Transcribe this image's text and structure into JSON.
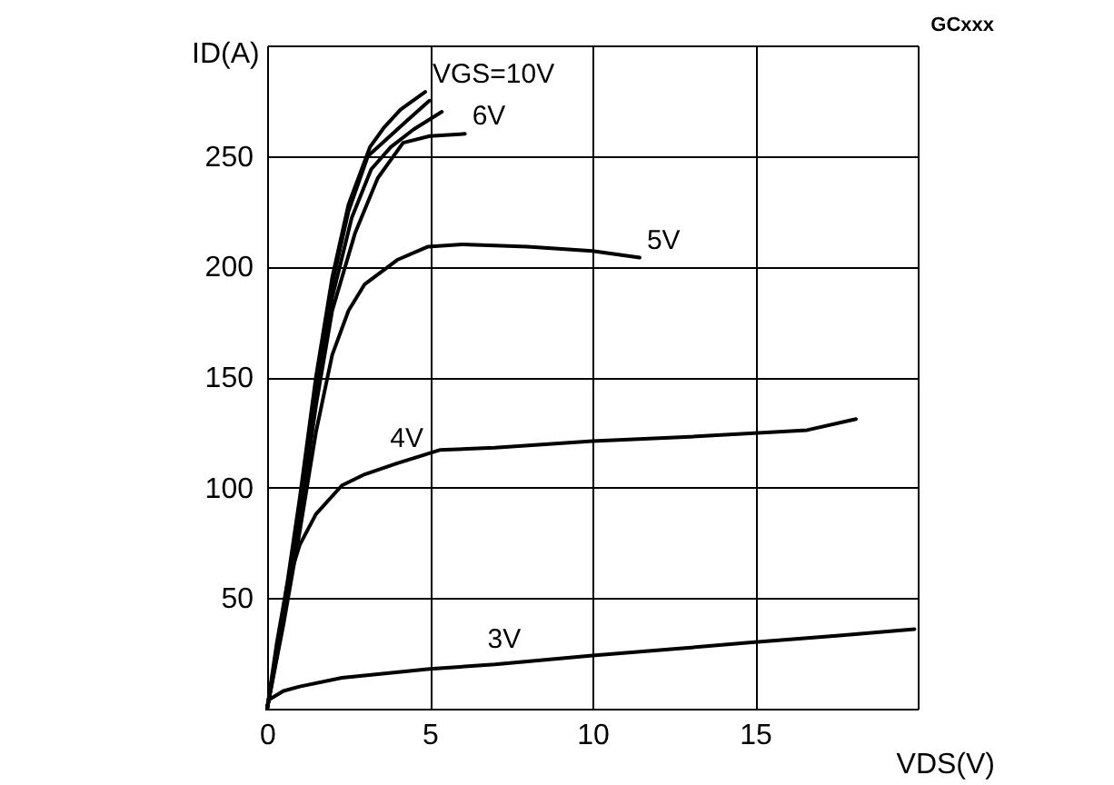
{
  "chart_data": {
    "type": "line",
    "xlabel": "VDS(V)",
    "ylabel": "ID(A)",
    "annotations": [
      "GCxxx"
    ],
    "xlim": [
      0,
      20
    ],
    "ylim": [
      0,
      300
    ],
    "xticks": [
      0,
      5,
      10,
      15,
      {
        "value": 20,
        "label": null
      }
    ],
    "yticks": [
      {
        "value": 0,
        "label": null
      },
      50,
      100,
      150,
      200,
      250,
      {
        "value": 300,
        "label": null
      }
    ],
    "grid": true,
    "legend": false,
    "marker": "none",
    "line_style": "solid",
    "series": [
      {
        "name": "VGS=10V",
        "color": "#000000",
        "x": [
          0,
          0.5,
          1,
          1.5,
          2,
          2.5,
          3.16,
          3.6,
          4.1,
          4.86
        ],
        "values": [
          0,
          45,
          95,
          150,
          195,
          228,
          254,
          263,
          271,
          279
        ]
      },
      {
        "color": "#000000",
        "x": [
          0,
          0.5,
          1,
          1.5,
          2,
          2.5,
          3.1,
          3.7,
          4.3,
          4.99
        ],
        "values": [
          0,
          43,
          92,
          147,
          192,
          225,
          250,
          258,
          266,
          275
        ]
      },
      {
        "color": "#000000",
        "x": [
          0,
          0.5,
          1,
          1.5,
          2,
          2.6,
          3.2,
          3.8,
          4.5,
          5.37
        ],
        "values": [
          0,
          42,
          90,
          143,
          186,
          222,
          244,
          254,
          262,
          270
        ]
      },
      {
        "name": "6V",
        "color": "#000000",
        "x": [
          0,
          0.5,
          1,
          1.5,
          2,
          2.7,
          3.4,
          4.18,
          5,
          6.08
        ],
        "values": [
          0,
          40,
          85,
          137,
          180,
          215,
          240,
          256,
          259,
          260
        ]
      },
      {
        "name": "5V",
        "color": "#000000",
        "x": [
          0,
          0.5,
          1,
          1.5,
          2,
          2.5,
          3,
          4,
          4.95,
          6,
          8,
          10,
          11.45
        ],
        "values": [
          0,
          38,
          80,
          125,
          160,
          180,
          192,
          203,
          209,
          210,
          209,
          207,
          204
        ]
      },
      {
        "name": "4V",
        "color": "#000000",
        "x": [
          0,
          0.3,
          0.6,
          1,
          1.5,
          2.3,
          3,
          4,
          5.3,
          7,
          10,
          13,
          16.6,
          18.1
        ],
        "values": [
          0,
          30,
          55,
          74,
          88,
          101,
          106,
          111,
          117,
          118,
          121,
          123,
          126,
          131
        ]
      },
      {
        "name": "3V",
        "color": "#000000",
        "x": [
          0,
          0.05,
          0.5,
          1,
          2.3,
          5,
          7,
          10,
          12.5,
          14.9,
          17.5,
          19.9
        ],
        "values": [
          0,
          4,
          8,
          10,
          14,
          18,
          20,
          24,
          27,
          30,
          33,
          36
        ]
      }
    ]
  }
}
